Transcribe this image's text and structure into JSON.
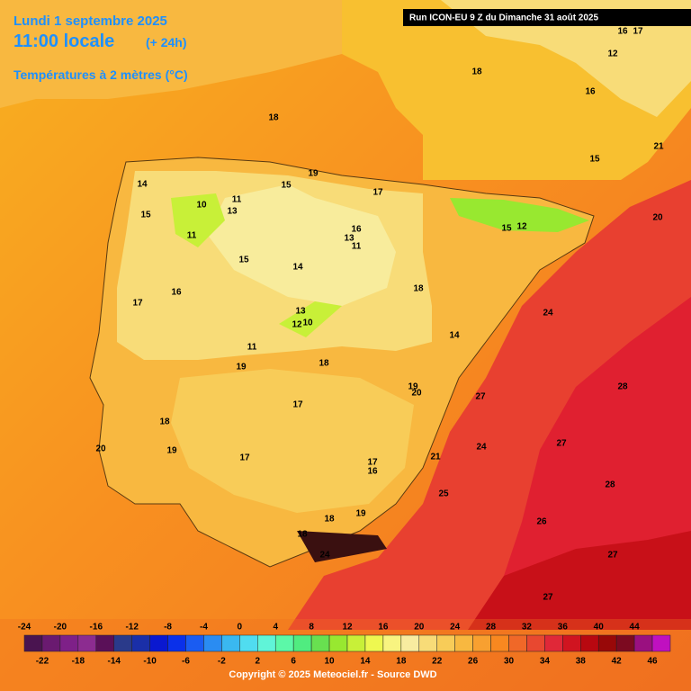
{
  "header": {
    "date": "Lundi 1 septembre 2025",
    "time": "11:00 locale",
    "lead": "(+ 24h)",
    "parameter": "Températures à 2 mètres (°C)",
    "run": "Run ICON-EU 9 Z du Dimanche 31 août 2025"
  },
  "map_labels": [
    16,
    17,
    12,
    18,
    16,
    18,
    21,
    15,
    19,
    14,
    15,
    17,
    11,
    10,
    13,
    15,
    20,
    16,
    15,
    12,
    13,
    11,
    11,
    15,
    14,
    18,
    16,
    17,
    24,
    13,
    12,
    10,
    14,
    11,
    19,
    18,
    28,
    19,
    20,
    27,
    17,
    18,
    27,
    24,
    20,
    19,
    21,
    17,
    17,
    16,
    28,
    25,
    18,
    19,
    26,
    18,
    27,
    24,
    27
  ],
  "legend": {
    "top_labels": [
      -24,
      -20,
      -16,
      -12,
      -8,
      -4,
      0,
      4,
      8,
      12,
      16,
      20,
      24,
      28,
      32,
      36,
      40,
      44
    ],
    "bottom_labels": [
      -22,
      -18,
      -14,
      -10,
      -6,
      -2,
      2,
      6,
      10,
      14,
      18,
      22,
      26,
      30,
      34,
      38,
      42,
      46
    ],
    "colors": [
      "#4a1450",
      "#6a1a70",
      "#7e2088",
      "#8c2c90",
      "#5a1058",
      "#2a3a8a",
      "#1a2fa8",
      "#0a18d0",
      "#0a30ea",
      "#1a5cf2",
      "#2a8cf2",
      "#3ab8f0",
      "#50dcf0",
      "#60f4d8",
      "#5cf8a8",
      "#50ec80",
      "#68e050",
      "#98e830",
      "#c8f038",
      "#eef850",
      "#f8f480",
      "#f8eca0",
      "#f8dc78",
      "#f8cc58",
      "#f8b840",
      "#f8a030",
      "#f88820",
      "#f06828",
      "#e84830",
      "#e02838",
      "#d01420",
      "#b80810",
      "#980808",
      "#7c0a20",
      "#9a1080",
      "#c010c0"
    ]
  },
  "copyright": "Copyright © 2025 Meteociel.fr - Source DWD"
}
